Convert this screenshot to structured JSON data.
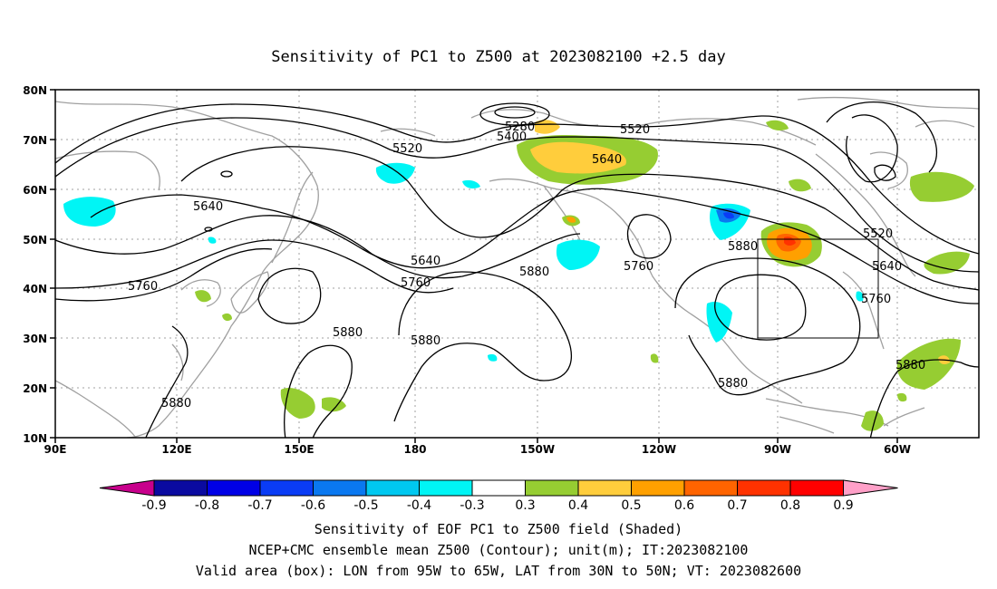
{
  "title": "Sensitivity of PC1 to Z500 at 2023082100 +2.5 day",
  "lat_ticks": [
    "80N",
    "70N",
    "60N",
    "50N",
    "40N",
    "30N",
    "20N",
    "10N"
  ],
  "lon_ticks": [
    "90E",
    "120E",
    "150E",
    "180",
    "150W",
    "120W",
    "90W",
    "60W"
  ],
  "contour_labels": [
    {
      "id": "c5280",
      "text": "5280"
    },
    {
      "id": "c5400",
      "text": "5400"
    },
    {
      "id": "c5520a",
      "text": "5520"
    },
    {
      "id": "c5520b",
      "text": "5520"
    },
    {
      "id": "c5520c",
      "text": "5520"
    },
    {
      "id": "c5640a",
      "text": "5640"
    },
    {
      "id": "c5640b",
      "text": "5640"
    },
    {
      "id": "c5640c",
      "text": "5640"
    },
    {
      "id": "c5640d",
      "text": "5640"
    },
    {
      "id": "c5760a",
      "text": "5760"
    },
    {
      "id": "c5760b",
      "text": "5760"
    },
    {
      "id": "c5760c",
      "text": "5760"
    },
    {
      "id": "c5760d",
      "text": "5760"
    },
    {
      "id": "c5880a",
      "text": "5880"
    },
    {
      "id": "c5880b",
      "text": "5880"
    },
    {
      "id": "c5880c",
      "text": "5880"
    },
    {
      "id": "c5880d",
      "text": "5880"
    },
    {
      "id": "c5880e",
      "text": "5880"
    },
    {
      "id": "c5880f",
      "text": "5880"
    },
    {
      "id": "c5880g",
      "text": "5880"
    }
  ],
  "colorbar": {
    "labels": [
      "-0.9",
      "-0.8",
      "-0.7",
      "-0.6",
      "-0.5",
      "-0.4",
      "-0.3",
      "0.3",
      "0.4",
      "0.5",
      "0.6",
      "0.7",
      "0.8",
      "0.9"
    ],
    "colors": [
      "#c8008c",
      "#0a0aa0",
      "#0000e6",
      "#0a3cf5",
      "#0a78f0",
      "#00c8f0",
      "#00f5f5",
      "#ffffff",
      "#96cd32",
      "#ffcd3c",
      "#ffa000",
      "#ff6400",
      "#ff3200",
      "#ff0000",
      "#ffa0c8"
    ]
  },
  "footer": [
    "Sensitivity of EOF PC1 to Z500 field (Shaded)",
    "NCEP+CMC ensemble mean Z500 (Contour); unit(m); IT:2023082100",
    "Valid area (box): LON from 95W to 65W, LAT from 30N to 50N; VT: 2023082600"
  ],
  "valid_box": {
    "lon": [
      -95,
      -65
    ],
    "lat": [
      30,
      50
    ]
  },
  "colors": {
    "land_outline": "#a0a0a0",
    "contour": "#000000",
    "grid": "#a0a0a0"
  }
}
